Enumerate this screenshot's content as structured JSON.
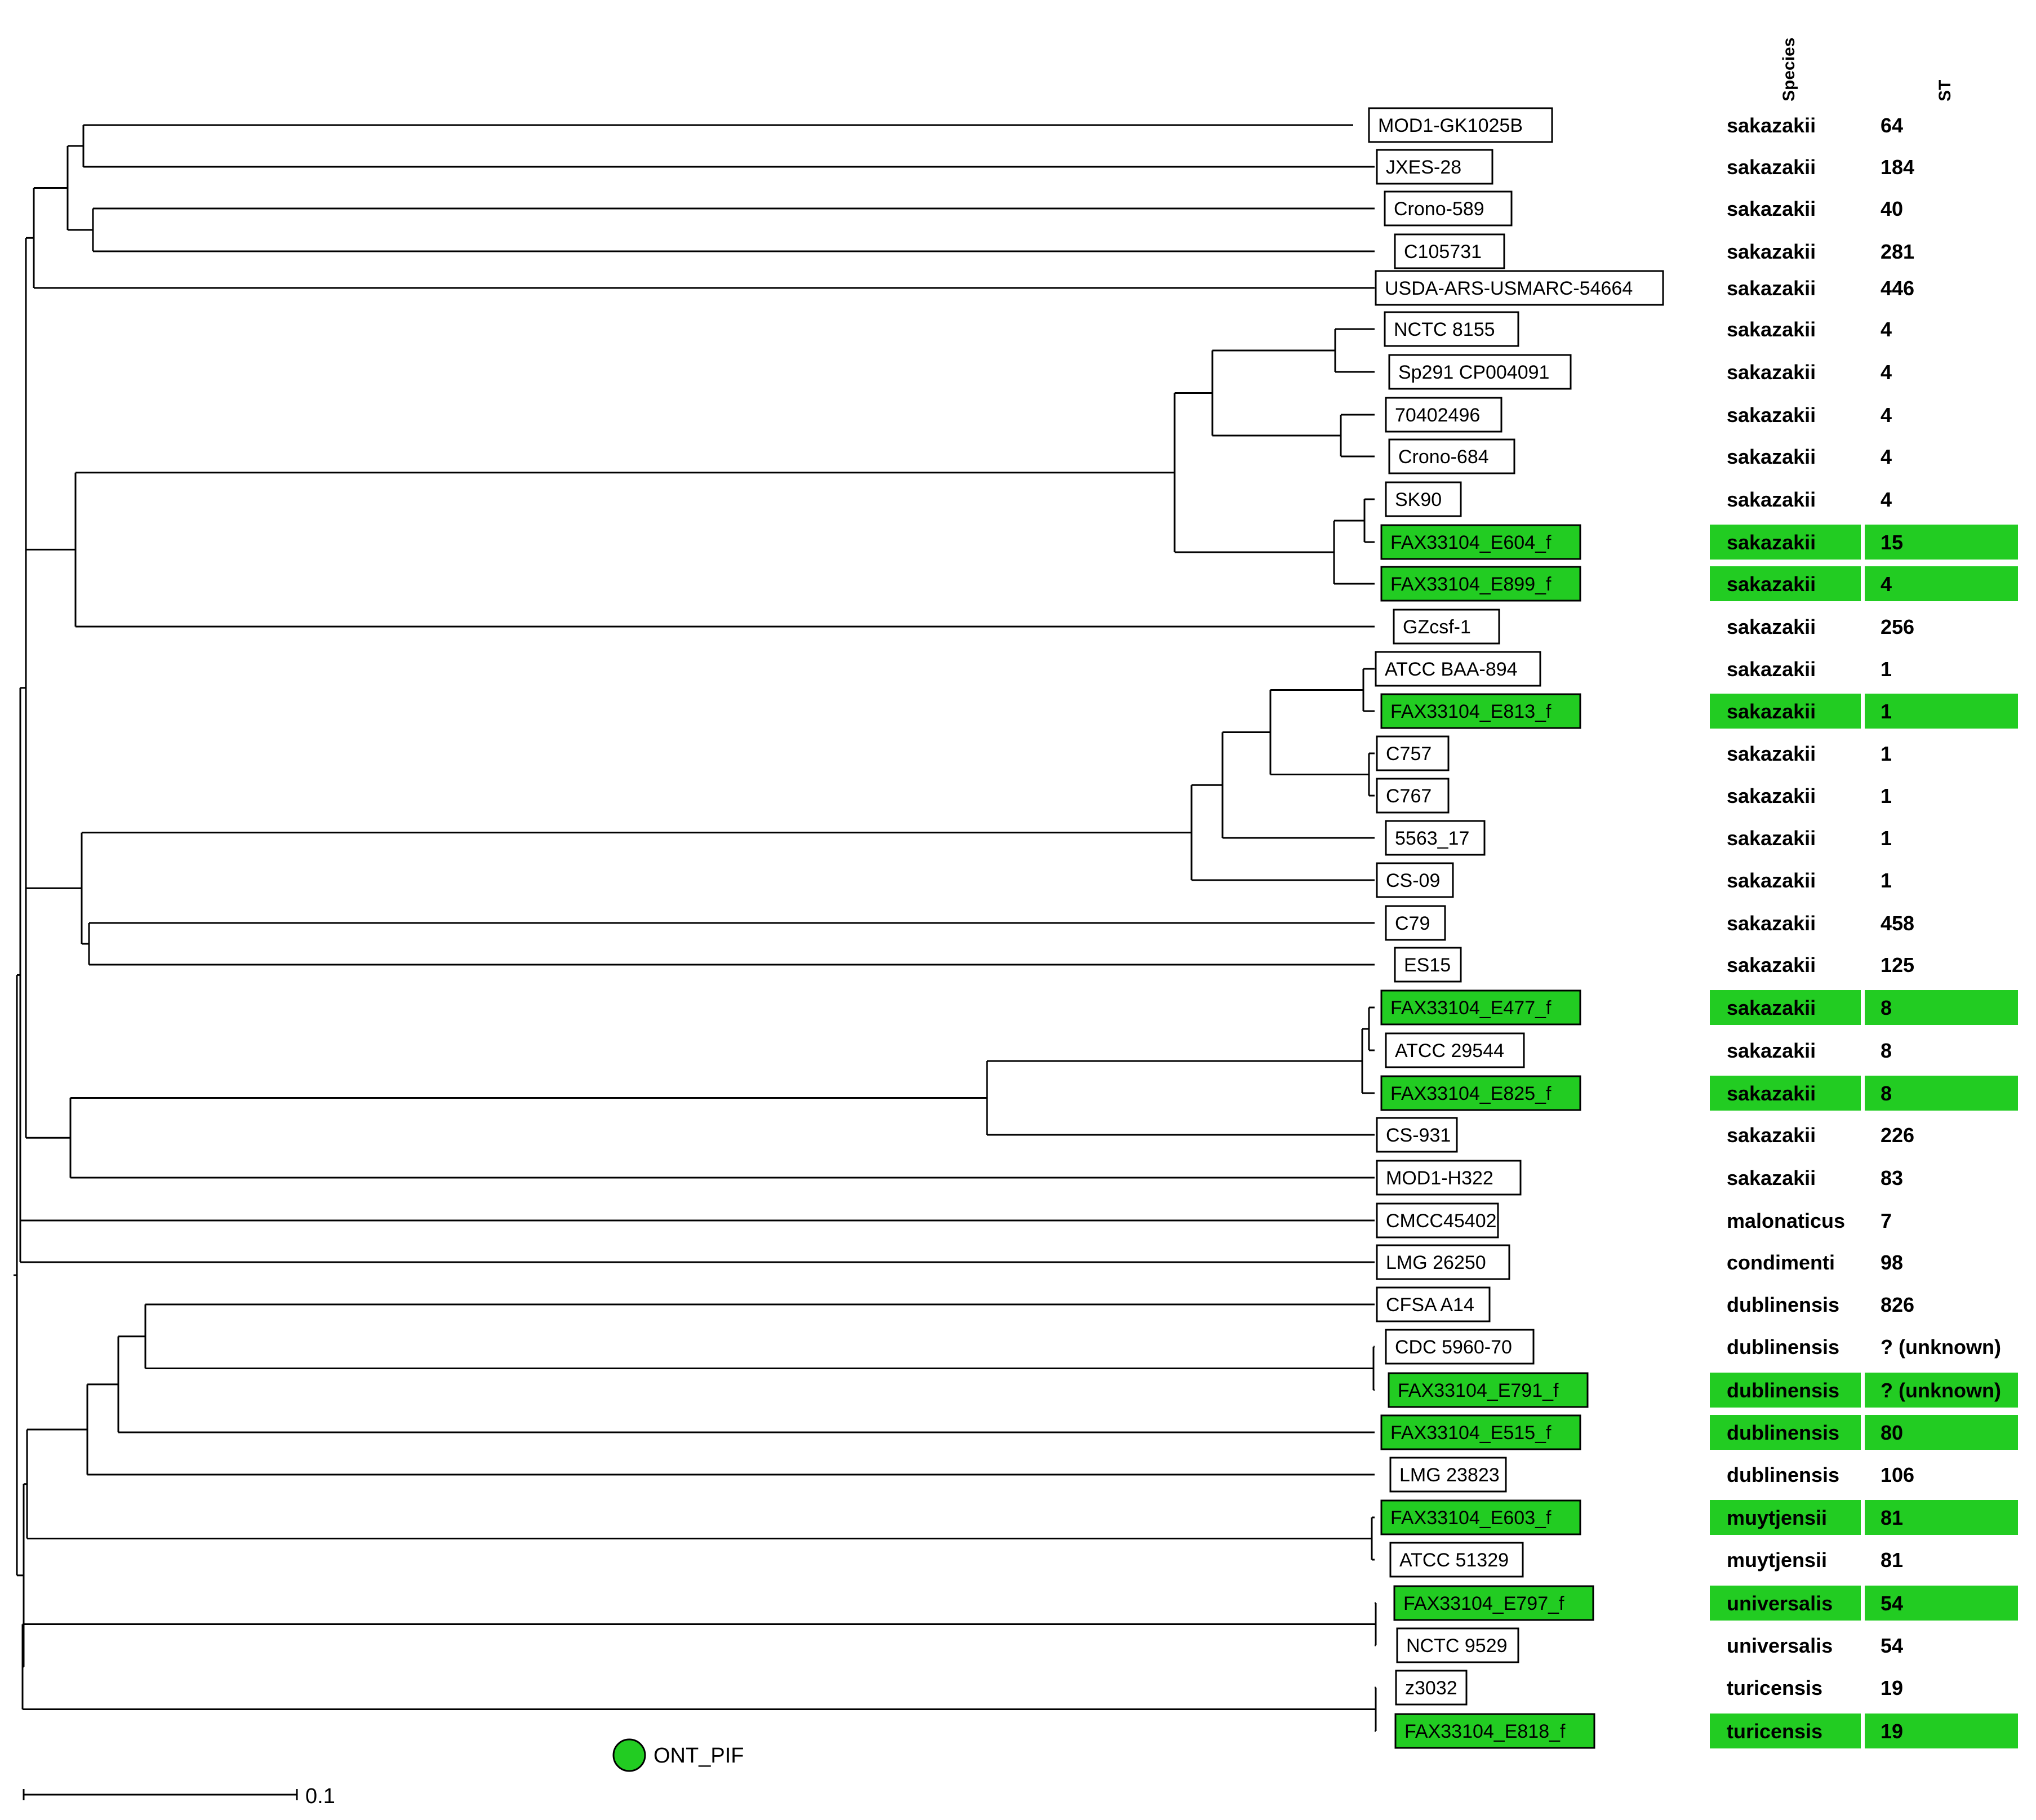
{
  "headers": {
    "species": "Species",
    "st": "ST"
  },
  "legend": {
    "label": "ONT_PIF",
    "color": "#22cc22"
  },
  "scale_bar": {
    "label": "0.1"
  },
  "highlight_color": "#22cc22",
  "taxa": [
    {
      "name": "MOD1-GK1025B",
      "species": "sakazakii",
      "st": "64",
      "highlighted": false
    },
    {
      "name": "JXES-28",
      "species": "sakazakii",
      "st": "184",
      "highlighted": false
    },
    {
      "name": "Crono-589",
      "species": "sakazakii",
      "st": "40",
      "highlighted": false
    },
    {
      "name": "C105731",
      "species": "sakazakii",
      "st": "281",
      "highlighted": false
    },
    {
      "name": "USDA-ARS-USMARC-54664",
      "species": "sakazakii",
      "st": "446",
      "highlighted": false
    },
    {
      "name": "NCTC 8155",
      "species": "sakazakii",
      "st": "4",
      "highlighted": false
    },
    {
      "name": "Sp291 CP004091",
      "species": "sakazakii",
      "st": "4",
      "highlighted": false
    },
    {
      "name": "70402496",
      "species": "sakazakii",
      "st": "4",
      "highlighted": false
    },
    {
      "name": "Crono-684",
      "species": "sakazakii",
      "st": "4",
      "highlighted": false
    },
    {
      "name": "SK90",
      "species": "sakazakii",
      "st": "4",
      "highlighted": false
    },
    {
      "name": "FAX33104_E604_f",
      "species": "sakazakii",
      "st": "15",
      "highlighted": true
    },
    {
      "name": "FAX33104_E899_f",
      "species": "sakazakii",
      "st": "4",
      "highlighted": true
    },
    {
      "name": "GZcsf-1",
      "species": "sakazakii",
      "st": "256",
      "highlighted": false
    },
    {
      "name": "ATCC BAA-894",
      "species": "sakazakii",
      "st": "1",
      "highlighted": false
    },
    {
      "name": "FAX33104_E813_f",
      "species": "sakazakii",
      "st": "1",
      "highlighted": true
    },
    {
      "name": "C757",
      "species": "sakazakii",
      "st": "1",
      "highlighted": false
    },
    {
      "name": "C767",
      "species": "sakazakii",
      "st": "1",
      "highlighted": false
    },
    {
      "name": "5563_17",
      "species": "sakazakii",
      "st": "1",
      "highlighted": false
    },
    {
      "name": "CS-09",
      "species": "sakazakii",
      "st": "1",
      "highlighted": false
    },
    {
      "name": "C79",
      "species": "sakazakii",
      "st": "458",
      "highlighted": false
    },
    {
      "name": "ES15",
      "species": "sakazakii",
      "st": "125",
      "highlighted": false
    },
    {
      "name": "FAX33104_E477_f",
      "species": "sakazakii",
      "st": "8",
      "highlighted": true
    },
    {
      "name": "ATCC 29544",
      "species": "sakazakii",
      "st": "8",
      "highlighted": false
    },
    {
      "name": "FAX33104_E825_f",
      "species": "sakazakii",
      "st": "8",
      "highlighted": true
    },
    {
      "name": "CS-931",
      "species": "sakazakii",
      "st": "226",
      "highlighted": false
    },
    {
      "name": "MOD1-H322",
      "species": "sakazakii",
      "st": "83",
      "highlighted": false
    },
    {
      "name": "CMCC45402",
      "species": "malonaticus",
      "st": "7",
      "highlighted": false
    },
    {
      "name": "LMG 26250",
      "species": "condimenti",
      "st": "98",
      "highlighted": false
    },
    {
      "name": "CFSA A14",
      "species": "dublinensis",
      "st": "826",
      "highlighted": false
    },
    {
      "name": "CDC 5960-70",
      "species": "dublinensis",
      "st": "? (unknown)",
      "highlighted": false
    },
    {
      "name": "FAX33104_E791_f",
      "species": "dublinensis",
      "st": "? (unknown)",
      "highlighted": true
    },
    {
      "name": "FAX33104_E515_f",
      "species": "dublinensis",
      "st": "80",
      "highlighted": true
    },
    {
      "name": "LMG 23823",
      "species": "dublinensis",
      "st": "106",
      "highlighted": false
    },
    {
      "name": "FAX33104_E603_f",
      "species": "muytjensii",
      "st": "81",
      "highlighted": true
    },
    {
      "name": "ATCC 51329",
      "species": "muytjensii",
      "st": "81",
      "highlighted": false
    },
    {
      "name": "FAX33104_E797_f",
      "species": "universalis",
      "st": "54",
      "highlighted": true
    },
    {
      "name": "NCTC 9529",
      "species": "universalis",
      "st": "54",
      "highlighted": false
    },
    {
      "name": "z3032",
      "species": "turicensis",
      "st": "19",
      "highlighted": false
    },
    {
      "name": "FAX33104_E818_f",
      "species": "turicensis",
      "st": "19",
      "highlighted": true
    }
  ]
}
